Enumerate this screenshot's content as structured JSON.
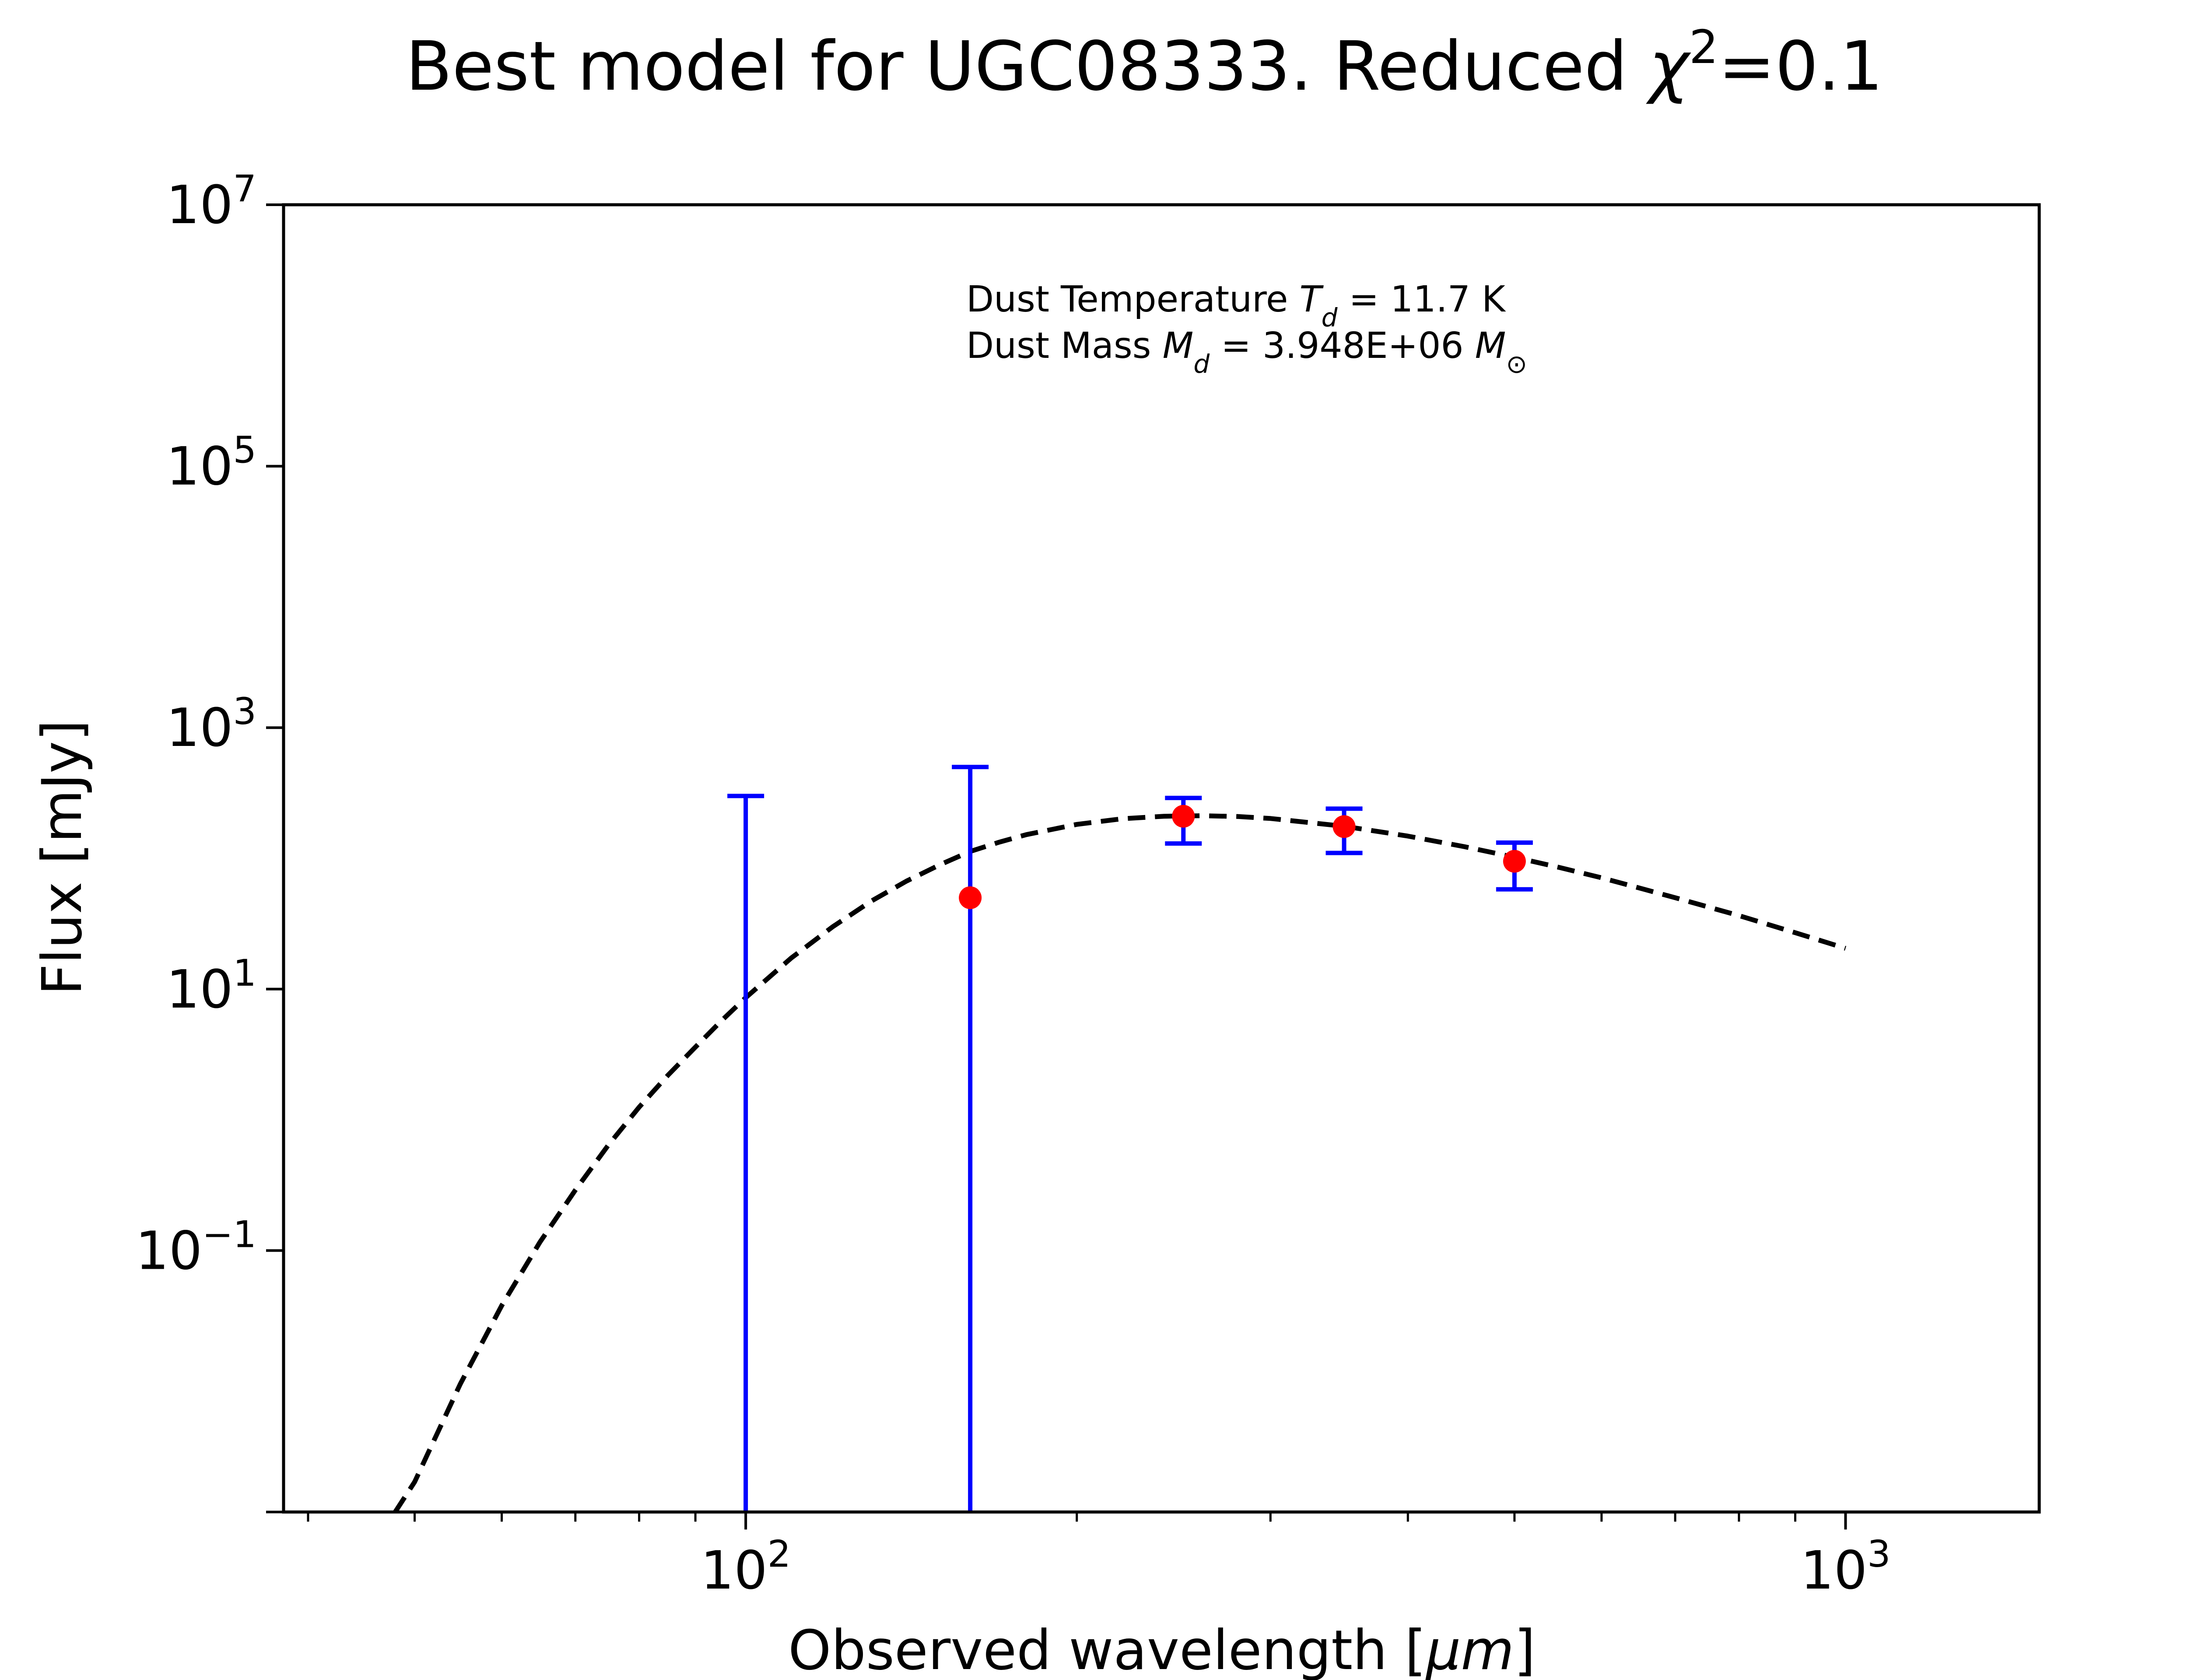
{
  "chart_data": {
    "type": "scatter",
    "title": {
      "prefix": "Best model for UGC08333. Reduced ",
      "symbol": "χ",
      "power": "2",
      "suffix": "=0.1"
    },
    "xlabel": {
      "prefix": "Observed wavelength [",
      "unit": "μm",
      "suffix": "]"
    },
    "ylabel": "Flux [mJy]",
    "x_scale": "log",
    "y_scale": "log",
    "xlim": [
      38,
      1500
    ],
    "ylim": [
      0.001,
      10000000
    ],
    "grid": false,
    "x_ticks": [
      {
        "value": 100,
        "base": "10",
        "exp": "2"
      },
      {
        "value": 1000,
        "base": "10",
        "exp": "3"
      }
    ],
    "y_ticks": [
      {
        "value": 0.1,
        "base": "10",
        "exp": "−1"
      },
      {
        "value": 10,
        "base": "10",
        "exp": "1"
      },
      {
        "value": 1000,
        "base": "10",
        "exp": "3"
      },
      {
        "value": 100000,
        "base": "10",
        "exp": "5"
      },
      {
        "value": 10000000,
        "base": "10",
        "exp": "7"
      }
    ],
    "annotation": {
      "line1": {
        "prefix": "Dust Temperature ",
        "sym": "T",
        "sub": "d",
        "suffix": " = 11.7 K"
      },
      "line2": {
        "prefix": "Dust Mass ",
        "sym": "M",
        "sub": "d",
        "mid": " = 3.948E+06 ",
        "sym2": "M",
        "sub2": "⊙"
      }
    },
    "series": [
      {
        "type": "errorbar",
        "color": "#ff0000",
        "errorbar_color": "#0000ff",
        "points": [
          {
            "x": 100,
            "y": null,
            "yerr_low": null,
            "yerr_high": 300
          },
          {
            "x": 160,
            "y": 50,
            "yerr_low": null,
            "yerr_high": 500
          },
          {
            "x": 250,
            "y": 210,
            "yerr_low": 130,
            "yerr_high": 290
          },
          {
            "x": 350,
            "y": 175,
            "yerr_low": 110,
            "yerr_high": 240
          },
          {
            "x": 500,
            "y": 95,
            "yerr_low": 58,
            "yerr_high": 132
          }
        ]
      },
      {
        "type": "line",
        "style": "dashed",
        "color": "#000000",
        "model": "modified blackbody",
        "x": [
          48,
          50,
          55,
          60,
          65,
          70,
          75,
          80,
          85,
          90,
          95,
          100,
          110,
          120,
          130,
          140,
          150,
          160,
          170,
          180,
          200,
          220,
          240,
          260,
          280,
          300,
          350,
          400,
          450,
          500,
          550,
          600,
          700,
          800,
          900,
          1000
        ],
        "y": [
          0.001,
          0.0017,
          0.0095,
          0.038,
          0.116,
          0.29,
          0.64,
          1.25,
          2.2,
          3.6,
          5.7,
          8.6,
          17.3,
          30,
          47,
          67,
          89,
          113,
          133,
          152,
          182,
          201,
          210,
          212,
          209,
          202,
          176,
          148,
          123,
          102,
          85,
          71,
          50,
          36.5,
          27,
          20.5
        ]
      }
    ]
  }
}
